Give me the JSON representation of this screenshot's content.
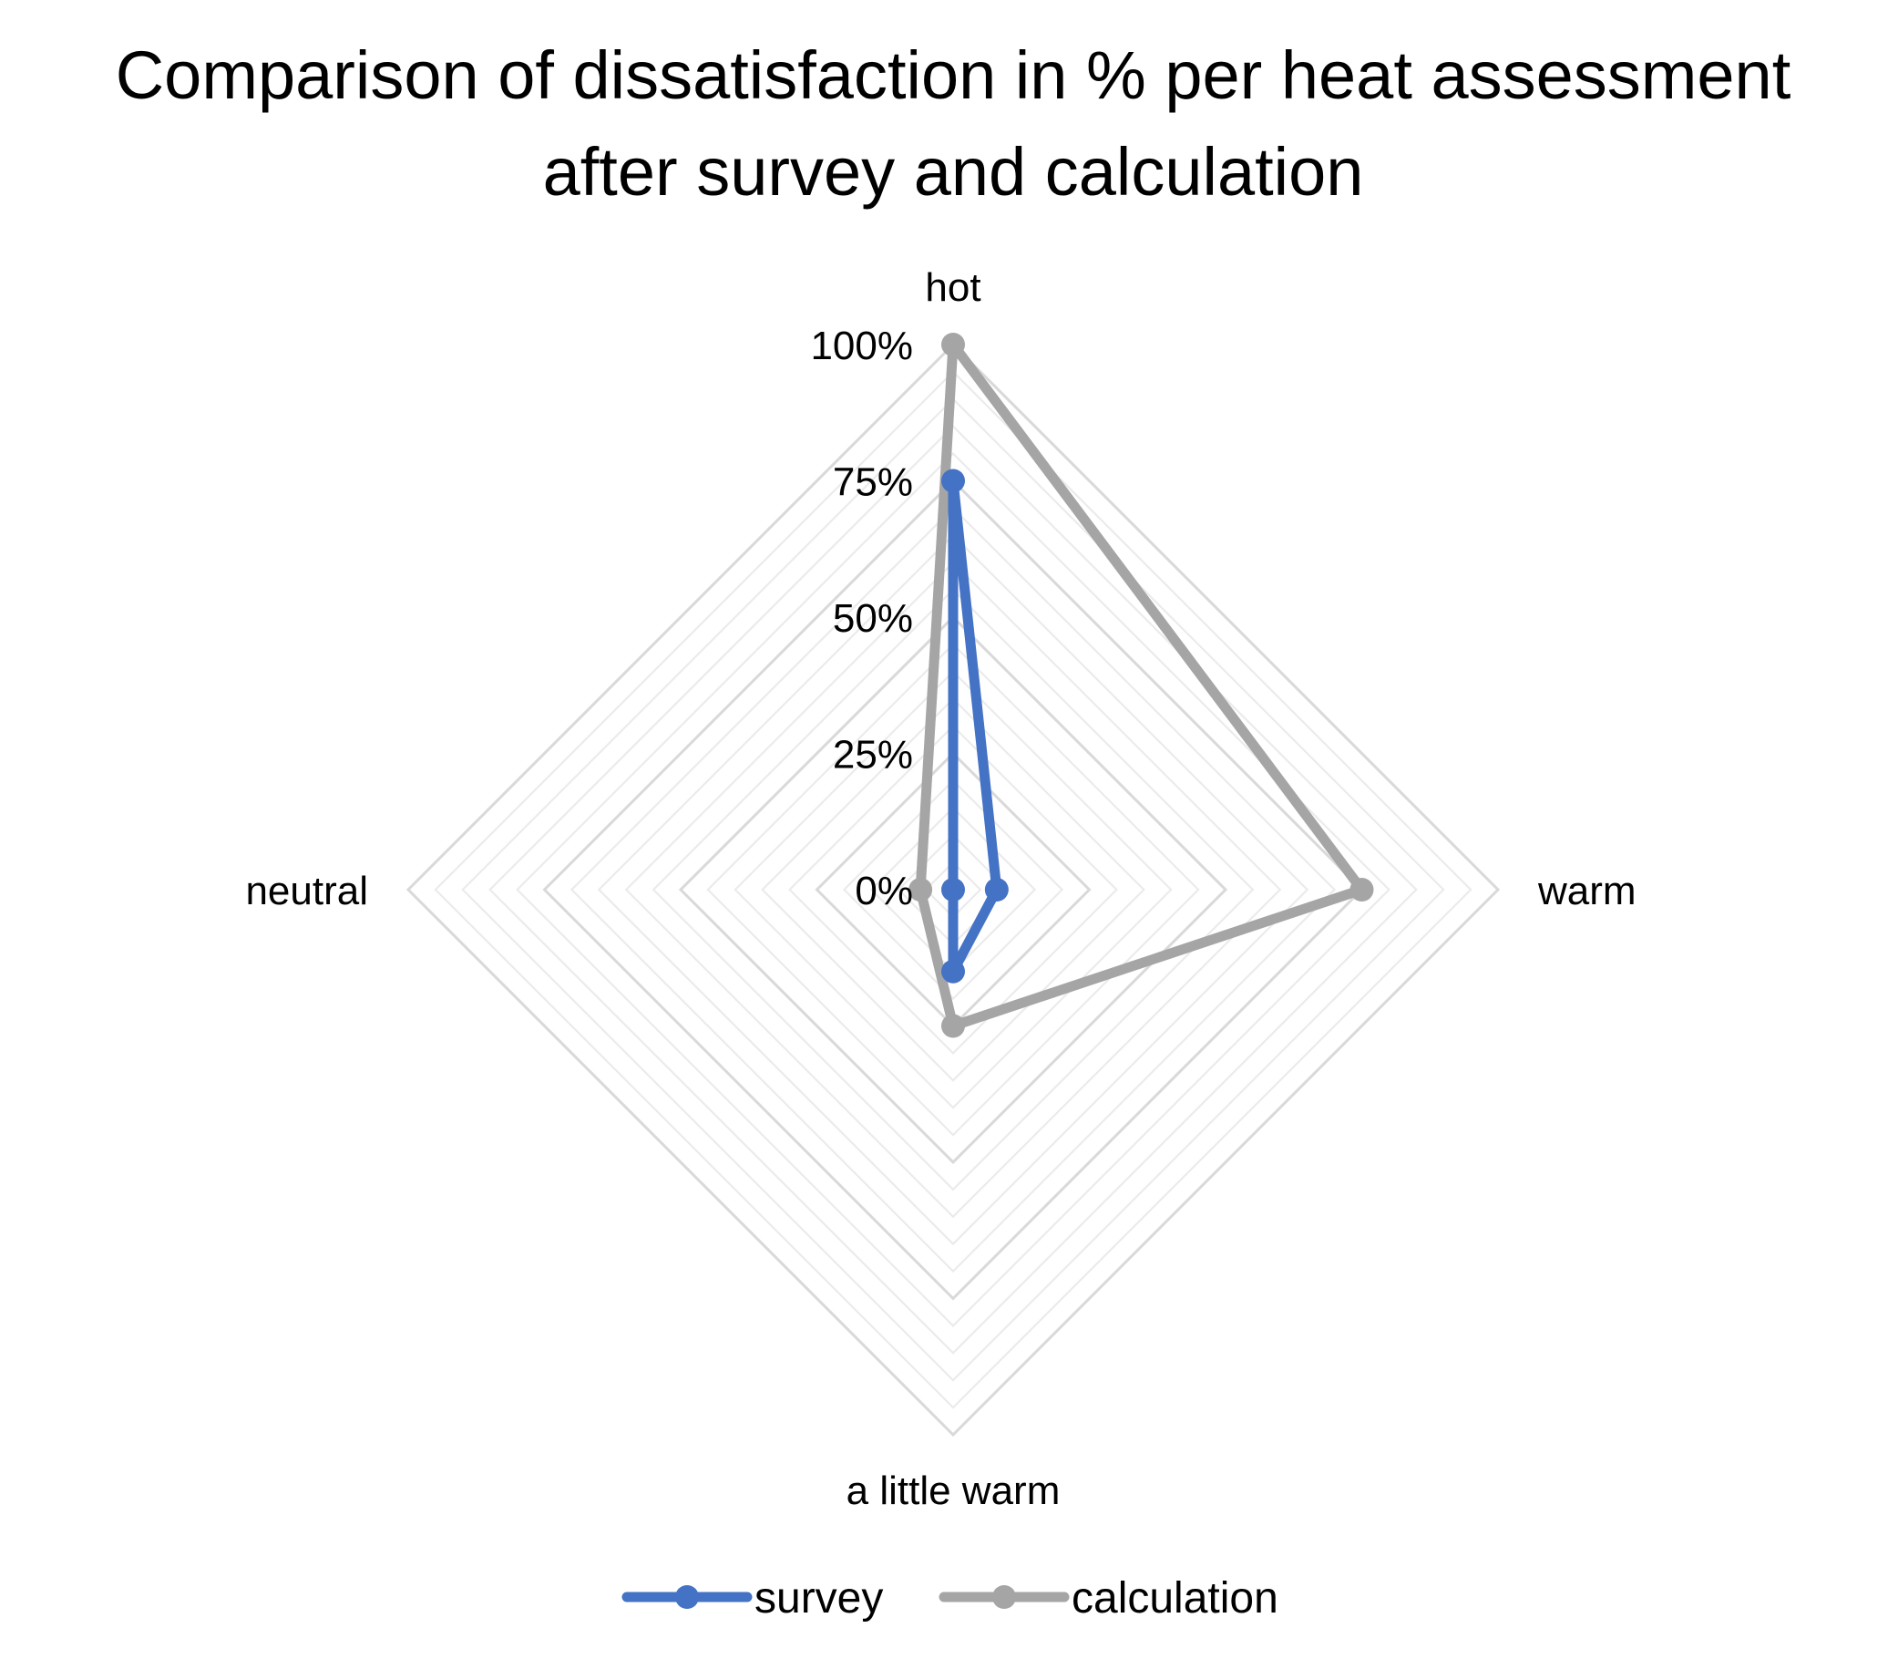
{
  "chart_data": {
    "type": "radar",
    "title": "Comparison of dissatisfaction in % per heat assessment after survey and calculation",
    "title_lines": [
      "Comparison of dissatisfaction in % per heat assessment",
      "after survey and calculation"
    ],
    "categories": [
      "hot",
      "warm",
      "a little warm",
      "neutral"
    ],
    "radial_range": [
      0,
      100
    ],
    "radial_ticks": [
      0,
      25,
      50,
      75,
      100
    ],
    "radial_tick_labels": [
      "0%",
      "25%",
      "50%",
      "75%",
      "100%"
    ],
    "minor_grid_step": 5,
    "grid": true,
    "legend_position": "bottom",
    "series": [
      {
        "name": "survey",
        "values": [
          75,
          8,
          15,
          0
        ],
        "color": "#4472C4"
      },
      {
        "name": "calculation",
        "values": [
          100,
          75,
          25,
          6
        ],
        "color": "#A5A5A5"
      }
    ]
  },
  "colors": {
    "grid_major": "#D9D9D9",
    "grid_minor": "#EBEBEB",
    "background": "#FFFFFF"
  }
}
